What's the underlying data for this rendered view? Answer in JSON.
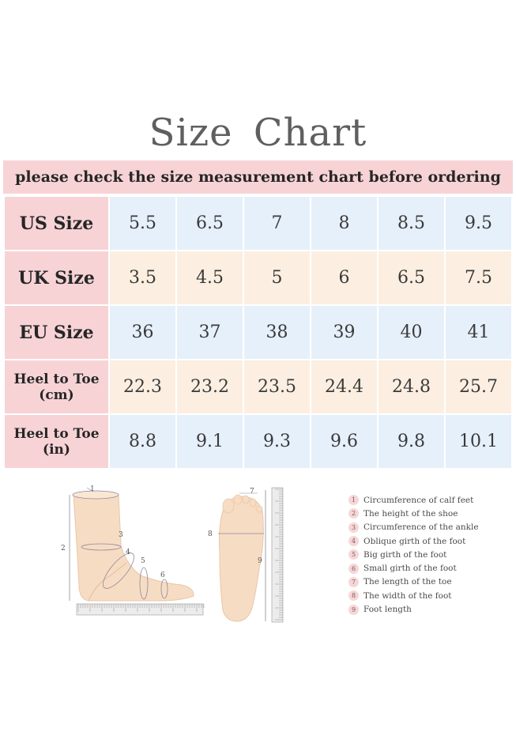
{
  "title": "Size  Chart",
  "subtitle": "please check the size measurement chart before ordering",
  "rows": [
    {
      "label": "US Size",
      "values": [
        "5.5",
        "6.5",
        "7",
        "8",
        "8.5",
        "9.5"
      ]
    },
    {
      "label": "UK Size",
      "values": [
        "3.5",
        "4.5",
        "5",
        "6",
        "6.5",
        "7.5"
      ]
    },
    {
      "label": "EU Size",
      "values": [
        "36",
        "37",
        "38",
        "39",
        "40",
        "41"
      ]
    },
    {
      "label_line1": "Heel to Toe",
      "label_line2": "(cm)",
      "values": [
        "22.3",
        "23.2",
        "23.5",
        "24.4",
        "24.8",
        "25.7"
      ]
    },
    {
      "label_line1": "Heel to Toe",
      "label_line2": "(in)",
      "values": [
        "8.8",
        "9.1",
        "9.3",
        "9.6",
        "9.8",
        "10.1"
      ]
    }
  ],
  "diagram_labels": [
    "1",
    "2",
    "3",
    "4",
    "5",
    "6",
    "7",
    "8",
    "9"
  ],
  "legend": [
    {
      "num": "1",
      "text": "Circumference of calf feet"
    },
    {
      "num": "2",
      "text": "The height of the shoe"
    },
    {
      "num": "3",
      "text": "Circumference of the ankle"
    },
    {
      "num": "4",
      "text": "Oblique girth of the foot"
    },
    {
      "num": "5",
      "text": "Big girth of the foot"
    },
    {
      "num": "6",
      "text": "Small girth of the foot"
    },
    {
      "num": "7",
      "text": "The length of the toe"
    },
    {
      "num": "8",
      "text": "The width of the foot"
    },
    {
      "num": "9",
      "text": "Foot length"
    }
  ],
  "colors": {
    "header_pink": "#f7d3d6",
    "row_blue": "#e6f0fb",
    "row_peach": "#fcefe1",
    "skin": "#f7dcc4"
  }
}
